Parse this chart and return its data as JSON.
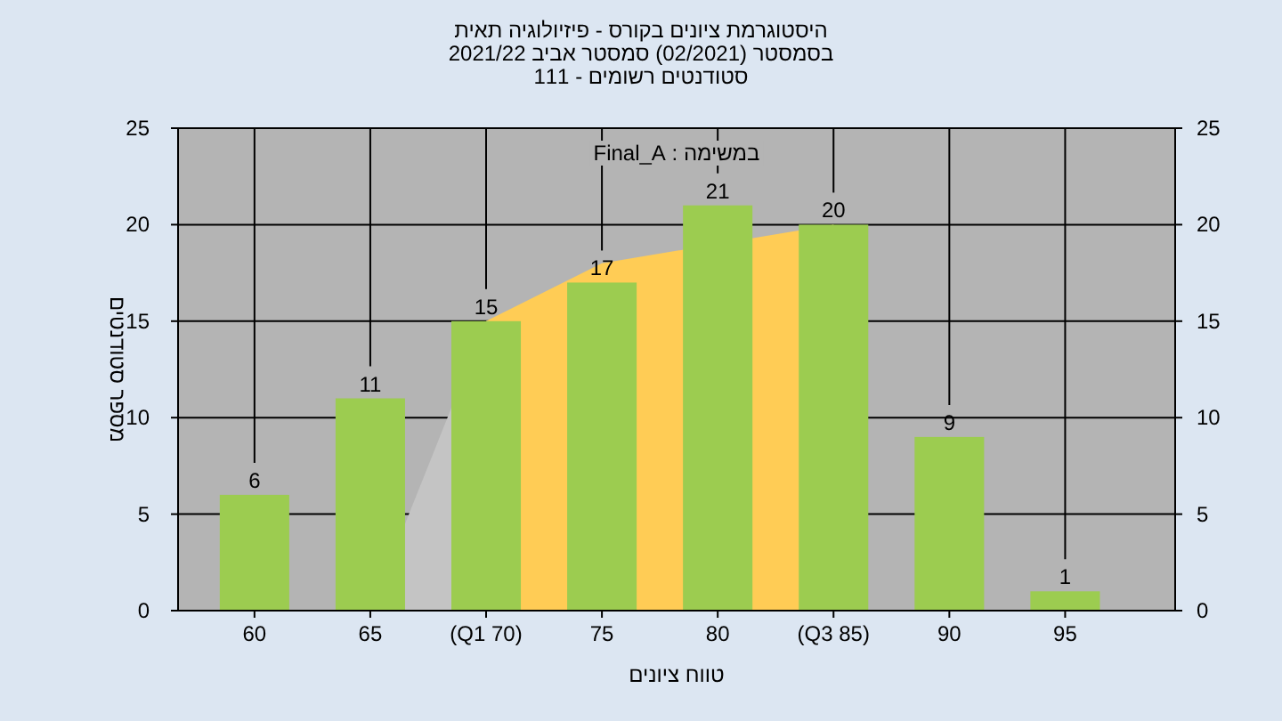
{
  "chart_data": {
    "type": "bar",
    "title": "היסטוגרמת ציונים בקורס - פיזיולוגיה תאית",
    "subtitle": "בסמסטר (02/2021) סמסטר אביב 2021/22",
    "annotations": [
      "סטודנטים רשומים - 111",
      "במשימה : Final_A"
    ],
    "xlabel": "טווח ציונים",
    "ylabel": "מספר סטודנטים",
    "categories": [
      "60",
      "65",
      "(Q1 70)",
      "75",
      "80",
      "(Q3 85)",
      "90",
      "95"
    ],
    "series": [
      {
        "type": "area",
        "color": "#c4c4c4",
        "values": [
          null,
          0,
          15,
          null,
          null,
          20,
          null,
          null
        ]
      },
      {
        "type": "area",
        "color": "#ffcc55",
        "values": [
          null,
          null,
          15,
          18,
          null,
          20,
          null,
          null
        ]
      },
      {
        "type": "bar",
        "color": "#9ccc50",
        "values": [
          6,
          11,
          15,
          17,
          21,
          20,
          9,
          1
        ],
        "value_labels": [
          "6",
          "11",
          "15",
          "17",
          "21",
          "20",
          "9",
          "1"
        ]
      }
    ],
    "ylim": [
      0,
      25
    ],
    "yticks": [
      0,
      5,
      10,
      15,
      20,
      25
    ],
    "y2lim": [
      0,
      25
    ],
    "y2ticks": [
      0,
      5,
      10,
      15,
      20,
      25
    ],
    "grid": true
  }
}
